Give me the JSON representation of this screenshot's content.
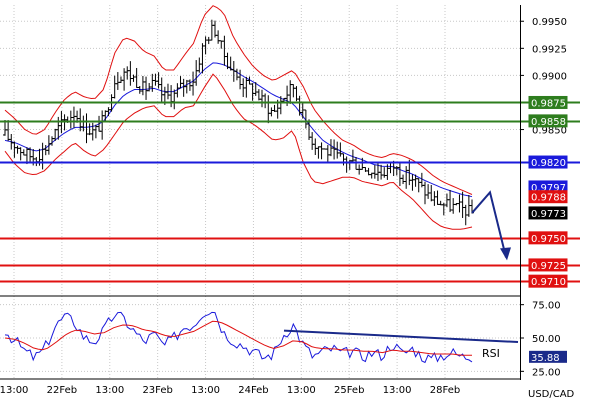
{
  "chart_data": [
    {
      "type": "candlestick",
      "ylim": [
        0.97,
        0.9965
      ],
      "price_ticks": [
        "0.9950",
        "0.9925",
        "0.9900",
        "0.9850"
      ],
      "x_ticks": [
        "13:00",
        "22Feb",
        "13:00",
        "23Feb",
        "13:00",
        "24Feb",
        "13:00",
        "25Feb",
        "13:00",
        "28Feb"
      ],
      "levels": [
        {
          "value": 0.9875,
          "label": "0.9875",
          "color": "#2e7d1e"
        },
        {
          "value": 0.9858,
          "label": "0.9858",
          "color": "#2e7d1e"
        },
        {
          "value": 0.982,
          "label": "0.9820",
          "color": "#1a1adb"
        },
        {
          "value": 0.975,
          "label": "0.9750",
          "color": "#e01010"
        },
        {
          "value": 0.9725,
          "label": "0.9725",
          "color": "#e01010"
        },
        {
          "value": 0.971,
          "label": "0.9710",
          "color": "#e01010"
        }
      ],
      "markers": [
        {
          "value": 0.9797,
          "label": "0.9797",
          "color": "#1a1adb"
        },
        {
          "value": 0.9788,
          "label": "0.9788",
          "color": "#e01010"
        },
        {
          "value": 0.9773,
          "label": "0.9773",
          "color": "#000000"
        }
      ],
      "close_path": [
        0.9845,
        0.9836,
        0.9828,
        0.9824,
        0.9832,
        0.9847,
        0.9858,
        0.9866,
        0.9852,
        0.9847,
        0.986,
        0.9895,
        0.9904,
        0.9897,
        0.9887,
        0.9892,
        0.988,
        0.9882,
        0.9892,
        0.9897,
        0.9929,
        0.9945,
        0.992,
        0.9902,
        0.9892,
        0.9887,
        0.9875,
        0.9865,
        0.988,
        0.989,
        0.9862,
        0.9838,
        0.9832,
        0.9827,
        0.9822,
        0.982,
        0.9815,
        0.9812,
        0.981,
        0.9817,
        0.9808,
        0.9805,
        0.9795,
        0.9786,
        0.9781,
        0.9779,
        0.9777,
        0.9773
      ],
      "upper_band": [
        0.9868,
        0.986,
        0.985,
        0.9845,
        0.985,
        0.9865,
        0.9878,
        0.9885,
        0.988,
        0.9878,
        0.9888,
        0.992,
        0.9935,
        0.9932,
        0.9922,
        0.9918,
        0.9905,
        0.9905,
        0.9918,
        0.993,
        0.9955,
        0.9965,
        0.9958,
        0.9935,
        0.992,
        0.9908,
        0.99,
        0.9895,
        0.99,
        0.9905,
        0.989,
        0.987,
        0.9858,
        0.9848,
        0.984,
        0.9836,
        0.983,
        0.9826,
        0.9824,
        0.9828,
        0.9826,
        0.9822,
        0.9816,
        0.9808,
        0.9802,
        0.9798,
        0.9794,
        0.979
      ],
      "lower_band": [
        0.983,
        0.9818,
        0.981,
        0.9808,
        0.9812,
        0.9822,
        0.983,
        0.9838,
        0.983,
        0.9825,
        0.9832,
        0.9845,
        0.9858,
        0.9865,
        0.987,
        0.9872,
        0.9862,
        0.9862,
        0.987,
        0.9872,
        0.9888,
        0.9902,
        0.9888,
        0.9872,
        0.986,
        0.9855,
        0.9848,
        0.984,
        0.9842,
        0.985,
        0.982,
        0.9802,
        0.98,
        0.9803,
        0.9806,
        0.9806,
        0.9802,
        0.98,
        0.9798,
        0.9802,
        0.9793,
        0.9786,
        0.9776,
        0.9766,
        0.976,
        0.9758,
        0.9758,
        0.976
      ],
      "moving_average": [
        0.984,
        0.9838,
        0.9834,
        0.983,
        0.9832,
        0.984,
        0.9847,
        0.9852,
        0.9852,
        0.9853,
        0.9858,
        0.9872,
        0.9882,
        0.9887,
        0.9887,
        0.9888,
        0.9885,
        0.9885,
        0.989,
        0.9895,
        0.9905,
        0.9912,
        0.991,
        0.9905,
        0.9899,
        0.9894,
        0.9888,
        0.9882,
        0.9878,
        0.9874,
        0.9862,
        0.985,
        0.984,
        0.9834,
        0.9829,
        0.9825,
        0.9822,
        0.9818,
        0.9816,
        0.9816,
        0.9812,
        0.9809,
        0.9804,
        0.98,
        0.9796,
        0.9793,
        0.979,
        0.9788
      ]
    },
    {
      "type": "line",
      "title": "RSI",
      "ylim": [
        20,
        80
      ],
      "ticks": [
        "75.00",
        "50.00",
        "25.00"
      ],
      "rsi_value": "35.88",
      "rsi": [
        55,
        48,
        40,
        35,
        42,
        58,
        66,
        62,
        50,
        47,
        56,
        68,
        64,
        55,
        47,
        53,
        44,
        50,
        58,
        60,
        70,
        72,
        54,
        48,
        44,
        40,
        35,
        38,
        52,
        60,
        45,
        36,
        40,
        42,
        38,
        40,
        36,
        39,
        37,
        46,
        38,
        42,
        36,
        34,
        37,
        39,
        36,
        35.88
      ],
      "rsi_signal": [
        50,
        49,
        46,
        42,
        41,
        46,
        52,
        56,
        55,
        53,
        54,
        58,
        60,
        59,
        56,
        55,
        52,
        51,
        53,
        55,
        59,
        63,
        61,
        57,
        53,
        49,
        45,
        42,
        44,
        48,
        47,
        43,
        42,
        42,
        41,
        41,
        40,
        40,
        39,
        41,
        40,
        40,
        39,
        38,
        38,
        38,
        37,
        37
      ]
    }
  ],
  "labels": {
    "rsi": "RSI",
    "pair": "USD/CAD"
  }
}
